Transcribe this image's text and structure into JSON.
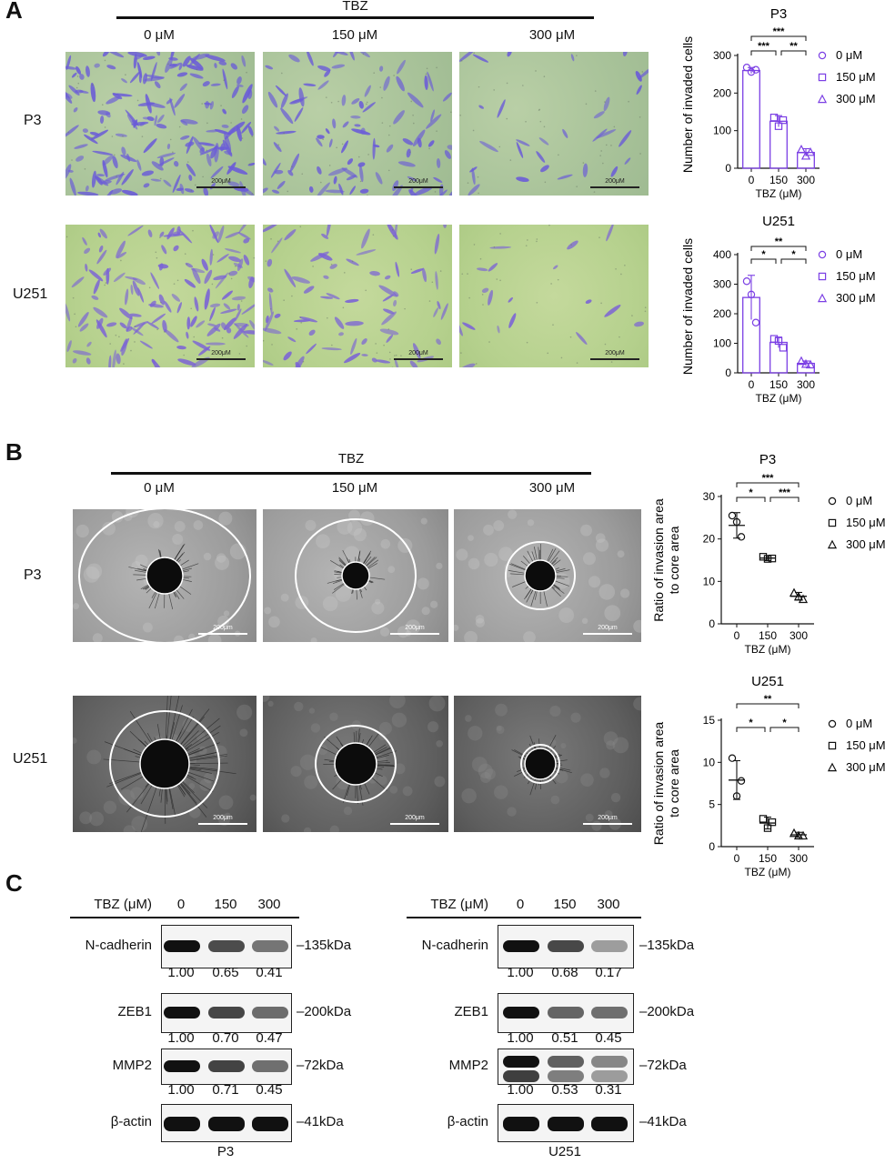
{
  "panelA": {
    "letter": "A",
    "treatment": "TBZ",
    "doses": [
      "0 μM",
      "150 μM",
      "300 μM"
    ],
    "rows": [
      "P3",
      "U251"
    ],
    "scale_bar": "200μM",
    "charts": [
      {
        "title": "P3",
        "ylabel": "Number of invaded cells",
        "xlabel": "TBZ (μM)"
      },
      {
        "title": "U251",
        "ylabel": "Number of invaded cells",
        "xlabel": "TBZ (μM)"
      }
    ]
  },
  "panelB": {
    "letter": "B",
    "treatment": "TBZ",
    "doses": [
      "0 μM",
      "150 μM",
      "300 μM"
    ],
    "rows": [
      "P3",
      "U251"
    ],
    "scale_bar": "200μm",
    "charts": [
      {
        "title": "P3",
        "ylabel_line1": "Ratio of invasion area",
        "ylabel_line2": "to core area",
        "xlabel": "TBZ (μM)"
      },
      {
        "title": "U251",
        "ylabel_line1": "Ratio of invasion area",
        "ylabel_line2": "to core area",
        "xlabel": "TBZ (μM)"
      }
    ]
  },
  "panelC": {
    "letter": "C",
    "blots": [
      {
        "header": "TBZ (μM)",
        "lanes": [
          "0",
          "150",
          "300"
        ],
        "footer": "P3",
        "proteins": [
          {
            "name": "N-cadherin",
            "kda": "135kDa",
            "quant": [
              "1.00",
              "0.65",
              "0.41"
            ]
          },
          {
            "name": "ZEB1",
            "kda": "200kDa",
            "quant": [
              "1.00",
              "0.70",
              "0.47"
            ]
          },
          {
            "name": "MMP2",
            "kda": "72kDa",
            "quant": [
              "1.00",
              "0.71",
              "0.45"
            ]
          },
          {
            "name": "β-actin",
            "kda": "41kDa",
            "quant": []
          }
        ]
      },
      {
        "header": "TBZ (μM)",
        "lanes": [
          "0",
          "150",
          "300"
        ],
        "footer": "U251",
        "proteins": [
          {
            "name": "N-cadherin",
            "kda": "135kDa",
            "quant": [
              "1.00",
              "0.68",
              "0.17"
            ]
          },
          {
            "name": "ZEB1",
            "kda": "200kDa",
            "quant": [
              "1.00",
              "0.51",
              "0.45"
            ]
          },
          {
            "name": "MMP2",
            "kda": "72kDa",
            "quant": [
              "1.00",
              "0.53",
              "0.31"
            ]
          },
          {
            "name": "β-actin",
            "kda": "41kDa",
            "quant": []
          }
        ]
      }
    ]
  },
  "chart_data": [
    {
      "type": "bar",
      "title": "P3",
      "ylabel": "Number of invaded cells",
      "xlabel": "TBZ (μM)",
      "categories": [
        "0",
        "150",
        "300"
      ],
      "values": [
        260,
        125,
        42
      ],
      "errors": [
        8,
        15,
        10
      ],
      "ylim": [
        0,
        300
      ],
      "yticks": [
        "0",
        "100",
        "200",
        "300"
      ],
      "legend": [
        "0 μM",
        "150 μM",
        "300 μM"
      ],
      "legend_placement": "right",
      "color": "#7b3fe4",
      "points": [
        [
          268,
          256,
          262
        ],
        [
          135,
          112,
          128
        ],
        [
          50,
          33,
          43
        ]
      ],
      "significance": [
        {
          "from": 0,
          "to": 2,
          "label": "***",
          "level": 0
        },
        {
          "from": 0,
          "to": 1,
          "label": "***",
          "level": 1
        },
        {
          "from": 1,
          "to": 2,
          "label": "**",
          "level": 1
        }
      ]
    },
    {
      "type": "bar",
      "title": "U251",
      "ylabel": "Number of invaded cells",
      "xlabel": "TBZ (μM)",
      "categories": [
        "0",
        "150",
        "300"
      ],
      "values": [
        255,
        103,
        32
      ],
      "errors": [
        75,
        18,
        8
      ],
      "ylim": [
        0,
        400
      ],
      "yticks": [
        "0",
        "100",
        "200",
        "300",
        "400"
      ],
      "legend": [
        "0 μM",
        "150 μM",
        "300 μM"
      ],
      "legend_placement": "right",
      "color": "#7b3fe4",
      "points": [
        [
          310,
          265,
          170
        ],
        [
          115,
          108,
          85
        ],
        [
          40,
          30,
          28
        ]
      ],
      "significance": [
        {
          "from": 0,
          "to": 2,
          "label": "**",
          "level": 0
        },
        {
          "from": 0,
          "to": 1,
          "label": "*",
          "level": 1
        },
        {
          "from": 1,
          "to": 2,
          "label": "*",
          "level": 1
        }
      ]
    },
    {
      "type": "scatter",
      "title": "P3",
      "ylabel": "Ratio of invasion area to core area",
      "xlabel": "TBZ (μM)",
      "categories": [
        "0",
        "150",
        "300"
      ],
      "values": [
        23.2,
        15.5,
        6.5
      ],
      "errors": [
        3.0,
        0.6,
        0.9
      ],
      "ylim": [
        0,
        30
      ],
      "yticks": [
        "0",
        "10",
        "20",
        "30"
      ],
      "legend": [
        "0 μM",
        "150 μM",
        "300 μM"
      ],
      "legend_placement": "right",
      "color": "#111111",
      "points": [
        [
          25.5,
          24.0,
          20.5
        ],
        [
          15.8,
          15.3,
          15.4
        ],
        [
          7.3,
          6.4,
          5.8
        ]
      ],
      "significance": [
        {
          "from": 0,
          "to": 2,
          "label": "***",
          "level": 0
        },
        {
          "from": 0,
          "to": 1,
          "label": "*",
          "level": 1
        },
        {
          "from": 1,
          "to": 2,
          "label": "***",
          "level": 1
        }
      ]
    },
    {
      "type": "scatter",
      "title": "U251",
      "ylabel": "Ratio of invasion area to core area",
      "xlabel": "TBZ (μM)",
      "categories": [
        "0",
        "150",
        "300"
      ],
      "values": [
        7.9,
        2.8,
        1.4
      ],
      "errors": [
        2.3,
        0.7,
        0.3
      ],
      "ylim": [
        0,
        15
      ],
      "yticks": [
        "0",
        "5",
        "10",
        "15"
      ],
      "legend": [
        "0 μM",
        "150 μM",
        "300 μM"
      ],
      "legend_placement": "right",
      "color": "#111111",
      "points": [
        [
          10.5,
          6.0,
          7.8
        ],
        [
          3.3,
          2.2,
          2.9
        ],
        [
          1.6,
          1.3,
          1.3
        ]
      ],
      "significance": [
        {
          "from": 0,
          "to": 2,
          "label": "**",
          "level": 0
        },
        {
          "from": 0,
          "to": 1,
          "label": "*",
          "level": 1
        },
        {
          "from": 1,
          "to": 2,
          "label": "*",
          "level": 1
        }
      ]
    }
  ]
}
